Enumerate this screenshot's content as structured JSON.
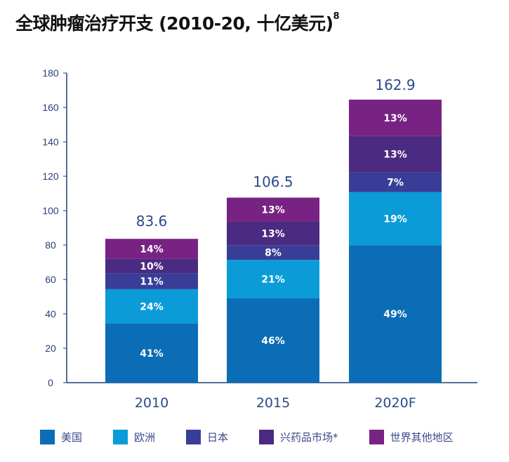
{
  "chart_data": {
    "type": "bar",
    "stacked": true,
    "title": "全球肿瘤治疗开支 (2010-20, 十亿美元)",
    "title_superscript": "8",
    "xlabel": "",
    "ylabel": "",
    "ylim": [
      0,
      180
    ],
    "yticks": [
      0,
      20,
      40,
      60,
      80,
      100,
      120,
      140,
      160,
      180
    ],
    "grid": false,
    "legend_placement": "bottom",
    "categories": [
      "2010",
      "2015",
      "2020F"
    ],
    "totals": [
      83.6,
      106.5,
      162.9
    ],
    "total_labels": [
      "83.6",
      "106.5",
      "162.9"
    ],
    "series": [
      {
        "name": "美国",
        "color": "#0b6db5",
        "percent": [
          41,
          46,
          49
        ]
      },
      {
        "name": "欧洲",
        "color": "#0b9bd9",
        "percent": [
          24,
          21,
          19
        ]
      },
      {
        "name": "日本",
        "color": "#383e97",
        "percent": [
          11,
          8,
          7
        ]
      },
      {
        "name": "兴药品市场*",
        "color": "#4b2a81",
        "percent": [
          10,
          13,
          13
        ]
      },
      {
        "name": "世界其他地区",
        "color": "#782283",
        "percent": [
          14,
          13,
          13
        ]
      }
    ]
  }
}
